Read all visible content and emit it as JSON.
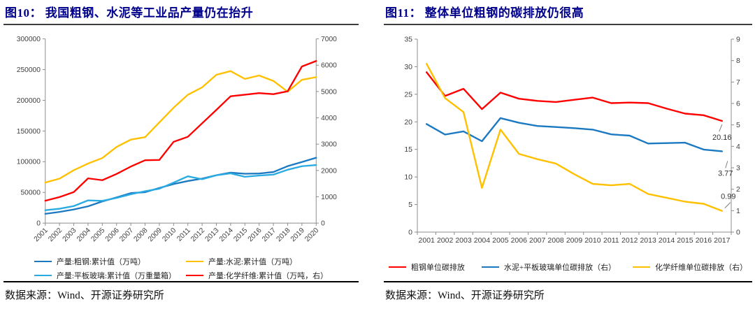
{
  "panels": [
    {
      "title": "图10：  我国粗钢、水泥等工业品产量仍在抬升",
      "source": "数据来源：Wind、开源证券研究所"
    },
    {
      "title": "图11：  整体单位粗钢的碳排放仍很高",
      "source": "数据来源：Wind、开源证券研究所"
    }
  ],
  "colors": {
    "title_navy": "#00008B",
    "steel_blue": "#1B79C2",
    "glass_lightblue": "#29ABE2",
    "gold": "#FFC000",
    "red": "#FF0000",
    "axis_gray": "#8c8c8c",
    "label_gray": "#404040"
  },
  "chart_data": [
    {
      "type": "line",
      "title": "我国粗钢、水泥等工业品产量仍在抬升",
      "x": [
        "2001",
        "2002",
        "2003",
        "2004",
        "2005",
        "2006",
        "2007",
        "2008",
        "2009",
        "2010",
        "2011",
        "2012",
        "2013",
        "2014",
        "2015",
        "2016",
        "2017",
        "2018",
        "2019",
        "2020"
      ],
      "x_mode": "on_ticks",
      "grid": false,
      "legend_position": "bottom",
      "axes": {
        "left": {
          "min": 0,
          "max": 300000,
          "step": 50000
        },
        "right": {
          "min": 0,
          "max": 7000,
          "step": 1000
        }
      },
      "series": [
        {
          "name": "产量:粗钢:累计值（万吨）",
          "axis": "left",
          "color": "#1B79C2",
          "values": [
            15100,
            18200,
            22200,
            27300,
            35300,
            41900,
            48900,
            50300,
            57200,
            63700,
            68500,
            72400,
            78000,
            82200,
            80400,
            80800,
            83200,
            92800,
            99600,
            106500
          ]
        },
        {
          "name": "产量:水泥:累计值（万吨）",
          "axis": "left",
          "color": "#FFC000",
          "values": [
            66000,
            72500,
            86200,
            97000,
            106000,
            124000,
            136000,
            140000,
            164000,
            188000,
            209000,
            221000,
            241400,
            247600,
            234800,
            240300,
            231600,
            214000,
            233300,
            237700
          ]
        },
        {
          "name": "产量:平板玻璃:累计值（万重量箱）",
          "axis": "left",
          "color": "#29ABE2",
          "values": [
            21000,
            23400,
            27800,
            37000,
            36200,
            41000,
            47000,
            52000,
            56000,
            66000,
            76200,
            71400,
            77900,
            81000,
            75500,
            77400,
            79000,
            86900,
            92700,
            94600
          ]
        },
        {
          "name": "产量:化学纤维:累计值（万吨，右）",
          "axis": "right",
          "color": "#FF0000",
          "values": [
            850,
            990,
            1180,
            1700,
            1630,
            1870,
            2150,
            2390,
            2400,
            3090,
            3280,
            3790,
            4300,
            4820,
            4880,
            4940,
            4900,
            5010,
            5950,
            6160
          ]
        }
      ],
      "legend_rows": [
        [
          0,
          1
        ],
        [
          2,
          3
        ]
      ],
      "annotations": []
    },
    {
      "type": "line",
      "title": "整体单位粗钢的碳排放仍很高",
      "x": [
        "2001",
        "2002",
        "2003",
        "2004",
        "2005",
        "2006",
        "2007",
        "2008",
        "2009",
        "2010",
        "2011",
        "2012",
        "2013",
        "2014",
        "2015",
        "2016",
        "2017"
      ],
      "x_mode": "between_ticks",
      "grid": false,
      "legend_position": "bottom",
      "axes": {
        "left": {
          "min": 0,
          "max": 35,
          "step": 5
        },
        "right": {
          "min": 0,
          "max": 9,
          "step": 1
        }
      },
      "series": [
        {
          "name": "粗钢单位碳排放",
          "axis": "left",
          "color": "#FF0000",
          "values": [
            29.0,
            24.7,
            26.0,
            22.3,
            25.3,
            24.2,
            23.8,
            23.6,
            24.0,
            24.4,
            23.4,
            23.5,
            23.4,
            22.4,
            21.5,
            21.2,
            20.16
          ]
        },
        {
          "name": "水泥+平板玻璃单位碳排放（右）",
          "axis": "right",
          "color": "#1B79C2",
          "values": [
            5.04,
            4.55,
            4.7,
            4.24,
            5.32,
            5.1,
            4.95,
            4.9,
            4.85,
            4.78,
            4.56,
            4.5,
            4.13,
            4.15,
            4.17,
            3.85,
            3.77
          ]
        },
        {
          "name": "化学纤维单位碳排放（右）",
          "axis": "right",
          "color": "#FFC000",
          "values": [
            7.85,
            6.25,
            5.6,
            2.06,
            4.78,
            3.65,
            3.4,
            3.2,
            2.7,
            2.25,
            2.18,
            2.25,
            1.78,
            1.6,
            1.42,
            1.32,
            0.99
          ]
        }
      ],
      "legend_rows": [
        [
          0,
          1,
          2
        ]
      ],
      "annotations": [
        {
          "series": 0,
          "point": 16,
          "label": "20.16",
          "text": [
            0,
            27
          ],
          "line": [
            0,
            5,
            -4,
            15
          ]
        },
        {
          "series": 1,
          "point": 16,
          "label": "3.77",
          "text": [
            5,
            35
          ],
          "line": [
            8,
            14,
            5,
            24
          ]
        },
        {
          "series": 2,
          "point": 16,
          "label": "0.99",
          "text": [
            9,
            -17
          ],
          "line": [
            12,
            -12,
            4,
            -4
          ]
        }
      ]
    }
  ]
}
